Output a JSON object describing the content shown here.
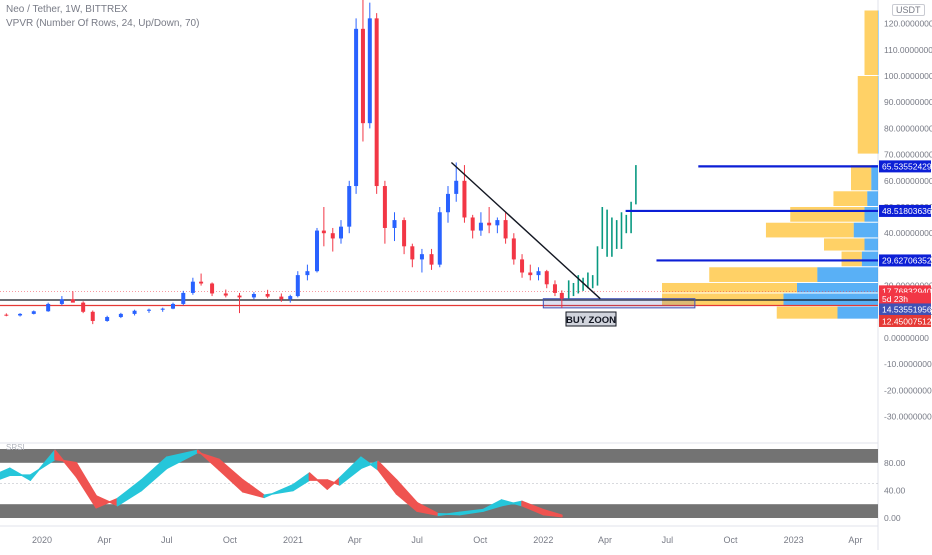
{
  "header": {
    "title": "Neo / Tether, 1W, BITTREX",
    "indicator": "VPVR (Number Of Rows, 24, Up/Down, 70)",
    "currency": "USDT"
  },
  "colors": {
    "up": "#2962ff",
    "down": "#f23645",
    "teal": "#089981",
    "level_line": "#0c1fd6",
    "support_red": "#e53935",
    "support_dark": "#131722",
    "vp_up": "#2196f3",
    "vp_down": "#ffb300",
    "osc_gray": "#737373",
    "osc_cyan": "#26c6da",
    "osc_red": "#ef5350"
  },
  "chart_data": {
    "type": "candlestick",
    "x_ticks": [
      "2020",
      "Apr",
      "Jul",
      "Oct",
      "2021",
      "Apr",
      "Jul",
      "Oct",
      "2022",
      "Apr",
      "Jul",
      "Oct",
      "2023",
      "Apr"
    ],
    "y_ticks": [
      "120.00000000",
      "110.00000000",
      "100.00000000",
      "90.00000000",
      "80.00000000",
      "70.00000000",
      "60.00000000",
      "50.00000000",
      "40.00000000",
      "30.00000000",
      "20.00000000",
      "10.00000000",
      "0.00000000",
      "-10.00000000",
      "-20.00000000",
      "-30.00000000"
    ],
    "price_labels": [
      {
        "text": "65.53552429",
        "y": 65.5,
        "color": "#0c1fd6"
      },
      {
        "text": "48.51803636",
        "y": 48.5,
        "color": "#0c1fd6"
      },
      {
        "text": "29.62706352",
        "y": 29.6,
        "color": "#0c1fd6"
      },
      {
        "text": "17.76832940",
        "y": 17.8,
        "color": "#f23645"
      },
      {
        "text": "5d 23h",
        "y": 15.0,
        "color": "#f23645"
      },
      {
        "text": "14.53551956",
        "y": 10.9,
        "color": "#3f51b5"
      },
      {
        "text": "12.45007512",
        "y": 6.5,
        "color": "#e53935"
      }
    ],
    "horizontal_levels": [
      {
        "y": 65.5,
        "x_start": "2022-08-15"
      },
      {
        "y": 48.5,
        "x_start": "2022-05-01"
      },
      {
        "y": 29.6,
        "x_start": "2022-06-15"
      }
    ],
    "support_lines": [
      {
        "y": 14.5,
        "color": "#131722"
      },
      {
        "y": 12.4,
        "color": "#e53935"
      }
    ],
    "trendline": {
      "from": [
        "2021-08-20",
        67
      ],
      "to": [
        "2022-03-25",
        15
      ]
    },
    "buy_zone": {
      "label": "BUY ZOON",
      "x_start": "2022-01-01",
      "x_end": "2022-08-10",
      "y_low": 11.5,
      "y_high": 15.0
    },
    "projection": [
      {
        "date": "2022-02-07",
        "open": 15,
        "close": 22
      },
      {
        "date": "2022-02-14",
        "open": 21,
        "close": 16
      },
      {
        "date": "2022-02-21",
        "open": 17,
        "close": 24
      },
      {
        "date": "2022-02-28",
        "open": 23,
        "close": 18
      },
      {
        "date": "2022-03-07",
        "open": 19,
        "close": 25
      },
      {
        "date": "2022-03-14",
        "open": 24,
        "close": 19
      },
      {
        "date": "2022-03-21",
        "open": 20,
        "close": 35
      },
      {
        "date": "2022-03-28",
        "open": 34,
        "close": 50
      },
      {
        "date": "2022-04-04",
        "open": 49,
        "close": 31
      },
      {
        "date": "2022-04-11",
        "open": 31,
        "close": 46
      },
      {
        "date": "2022-04-18",
        "open": 45,
        "close": 34
      },
      {
        "date": "2022-04-25",
        "open": 34,
        "close": 48
      },
      {
        "date": "2022-05-02",
        "open": 47,
        "close": 40
      },
      {
        "date": "2022-05-09",
        "open": 40,
        "close": 52
      },
      {
        "date": "2022-05-16",
        "open": 51,
        "close": 66
      }
    ],
    "candles": [
      {
        "date": "2019-10-01",
        "o": 9.6,
        "h": 10.2,
        "l": 9.0,
        "c": 9.2
      },
      {
        "date": "2019-10-21",
        "o": 9.2,
        "h": 9.6,
        "l": 8.6,
        "c": 8.9
      },
      {
        "date": "2019-11-10",
        "o": 8.9,
        "h": 9.4,
        "l": 8.3,
        "c": 8.6
      },
      {
        "date": "2019-11-30",
        "o": 8.6,
        "h": 9.5,
        "l": 8.2,
        "c": 9.2
      },
      {
        "date": "2019-12-20",
        "o": 9.2,
        "h": 10.5,
        "l": 9.0,
        "c": 10.2
      },
      {
        "date": "2020-01-10",
        "o": 10.2,
        "h": 13.5,
        "l": 10.0,
        "c": 13.0
      },
      {
        "date": "2020-01-30",
        "o": 13.0,
        "h": 16.0,
        "l": 12.5,
        "c": 14.8
      },
      {
        "date": "2020-02-15",
        "o": 14.8,
        "h": 17.8,
        "l": 13.8,
        "c": 13.5
      },
      {
        "date": "2020-03-01",
        "o": 13.5,
        "h": 14.0,
        "l": 9.5,
        "c": 10.0
      },
      {
        "date": "2020-03-15",
        "o": 10.0,
        "h": 10.5,
        "l": 5.3,
        "c": 6.5
      },
      {
        "date": "2020-04-05",
        "o": 6.5,
        "h": 8.5,
        "l": 6.2,
        "c": 8.0
      },
      {
        "date": "2020-04-25",
        "o": 8.0,
        "h": 9.6,
        "l": 7.6,
        "c": 9.2
      },
      {
        "date": "2020-05-15",
        "o": 9.2,
        "h": 10.8,
        "l": 8.6,
        "c": 10.4
      },
      {
        "date": "2020-06-05",
        "o": 10.4,
        "h": 11.2,
        "l": 9.6,
        "c": 10.8
      },
      {
        "date": "2020-06-25",
        "o": 10.8,
        "h": 11.6,
        "l": 10.0,
        "c": 11.2
      },
      {
        "date": "2020-07-10",
        "o": 11.2,
        "h": 13.5,
        "l": 11.0,
        "c": 13.0
      },
      {
        "date": "2020-07-25",
        "o": 13.0,
        "h": 18.0,
        "l": 12.5,
        "c": 17.2
      },
      {
        "date": "2020-08-08",
        "o": 17.2,
        "h": 23.0,
        "l": 16.5,
        "c": 21.5
      },
      {
        "date": "2020-08-20",
        "o": 21.5,
        "h": 24.6,
        "l": 20.0,
        "c": 20.8
      },
      {
        "date": "2020-09-05",
        "o": 20.8,
        "h": 21.2,
        "l": 16.0,
        "c": 17.0
      },
      {
        "date": "2020-09-25",
        "o": 17.0,
        "h": 18.5,
        "l": 15.5,
        "c": 16.2
      },
      {
        "date": "2020-10-15",
        "o": 16.2,
        "h": 17.2,
        "l": 9.5,
        "c": 15.5
      },
      {
        "date": "2020-11-05",
        "o": 15.5,
        "h": 17.5,
        "l": 14.8,
        "c": 16.8
      },
      {
        "date": "2020-11-25",
        "o": 16.8,
        "h": 18.4,
        "l": 15.2,
        "c": 15.8
      },
      {
        "date": "2020-12-15",
        "o": 15.8,
        "h": 17.0,
        "l": 13.8,
        "c": 14.8
      },
      {
        "date": "2020-12-28",
        "o": 14.8,
        "h": 16.5,
        "l": 13.5,
        "c": 16.0
      },
      {
        "date": "2021-01-08",
        "o": 16.0,
        "h": 25.5,
        "l": 15.5,
        "c": 24.0
      },
      {
        "date": "2021-01-22",
        "o": 24.0,
        "h": 28.0,
        "l": 22.0,
        "c": 25.5
      },
      {
        "date": "2021-02-05",
        "o": 25.5,
        "h": 42.0,
        "l": 25.0,
        "c": 41.0
      },
      {
        "date": "2021-02-15",
        "o": 41.0,
        "h": 50.0,
        "l": 35.0,
        "c": 40.0
      },
      {
        "date": "2021-02-28",
        "o": 40.0,
        "h": 42.0,
        "l": 33.0,
        "c": 38.0
      },
      {
        "date": "2021-03-12",
        "o": 38.0,
        "h": 45.0,
        "l": 36.0,
        "c": 42.5
      },
      {
        "date": "2021-03-24",
        "o": 42.5,
        "h": 60.0,
        "l": 40.0,
        "c": 58.0
      },
      {
        "date": "2021-04-03",
        "o": 58.0,
        "h": 122.0,
        "l": 55.0,
        "c": 118.0
      },
      {
        "date": "2021-04-13",
        "o": 118.0,
        "h": 135.0,
        "l": 75.0,
        "c": 82.0
      },
      {
        "date": "2021-04-23",
        "o": 82.0,
        "h": 128.0,
        "l": 80.0,
        "c": 122.0
      },
      {
        "date": "2021-05-03",
        "o": 122.0,
        "h": 124.0,
        "l": 55.0,
        "c": 58.0
      },
      {
        "date": "2021-05-15",
        "o": 58.0,
        "h": 60.0,
        "l": 36.0,
        "c": 42.0
      },
      {
        "date": "2021-05-29",
        "o": 42.0,
        "h": 48.0,
        "l": 37.0,
        "c": 45.0
      },
      {
        "date": "2021-06-12",
        "o": 45.0,
        "h": 46.0,
        "l": 32.0,
        "c": 35.0
      },
      {
        "date": "2021-06-24",
        "o": 35.0,
        "h": 36.0,
        "l": 27.0,
        "c": 30.0
      },
      {
        "date": "2021-07-08",
        "o": 30.0,
        "h": 34.0,
        "l": 25.0,
        "c": 32.0
      },
      {
        "date": "2021-07-22",
        "o": 32.0,
        "h": 34.0,
        "l": 26.0,
        "c": 28.0
      },
      {
        "date": "2021-08-03",
        "o": 28.0,
        "h": 50.0,
        "l": 27.0,
        "c": 48.0
      },
      {
        "date": "2021-08-15",
        "o": 48.0,
        "h": 58.0,
        "l": 44.0,
        "c": 55.0
      },
      {
        "date": "2021-08-27",
        "o": 55.0,
        "h": 67.0,
        "l": 52.0,
        "c": 60.0
      },
      {
        "date": "2021-09-08",
        "o": 60.0,
        "h": 66.0,
        "l": 44.0,
        "c": 46.0
      },
      {
        "date": "2021-09-20",
        "o": 46.0,
        "h": 47.0,
        "l": 38.0,
        "c": 41.0
      },
      {
        "date": "2021-10-02",
        "o": 41.0,
        "h": 48.0,
        "l": 39.0,
        "c": 44.0
      },
      {
        "date": "2021-10-14",
        "o": 44.0,
        "h": 50.0,
        "l": 40.0,
        "c": 43.0
      },
      {
        "date": "2021-10-26",
        "o": 43.0,
        "h": 46.0,
        "l": 40.0,
        "c": 45.0
      },
      {
        "date": "2021-11-07",
        "o": 45.0,
        "h": 48.0,
        "l": 36.0,
        "c": 38.0
      },
      {
        "date": "2021-11-19",
        "o": 38.0,
        "h": 40.0,
        "l": 28.0,
        "c": 30.0
      },
      {
        "date": "2021-12-01",
        "o": 30.0,
        "h": 32.0,
        "l": 23.0,
        "c": 25.0
      },
      {
        "date": "2021-12-13",
        "o": 25.0,
        "h": 28.0,
        "l": 22.0,
        "c": 24.0
      },
      {
        "date": "2021-12-25",
        "o": 24.0,
        "h": 27.0,
        "l": 22.0,
        "c": 25.5
      },
      {
        "date": "2022-01-06",
        "o": 25.5,
        "h": 26.0,
        "l": 19.0,
        "c": 20.5
      },
      {
        "date": "2022-01-18",
        "o": 20.5,
        "h": 22.0,
        "l": 16.0,
        "c": 17.2
      },
      {
        "date": "2022-01-28",
        "o": 17.2,
        "h": 18.2,
        "l": 11.5,
        "c": 15.0
      }
    ],
    "volume_profile": [
      {
        "y_low": 100,
        "y_high": 125,
        "up": 0.0,
        "down": 0.1
      },
      {
        "y_low": 70,
        "y_high": 100,
        "up": 0.0,
        "down": 0.15
      },
      {
        "y_low": 56,
        "y_high": 66,
        "up": 0.05,
        "down": 0.15
      },
      {
        "y_low": 50,
        "y_high": 56,
        "up": 0.08,
        "down": 0.25
      },
      {
        "y_low": 44,
        "y_high": 50,
        "up": 0.1,
        "down": 0.55
      },
      {
        "y_low": 38,
        "y_high": 44,
        "up": 0.18,
        "down": 0.65
      },
      {
        "y_low": 33,
        "y_high": 38,
        "up": 0.1,
        "down": 0.3
      },
      {
        "y_low": 27,
        "y_high": 33,
        "up": 0.12,
        "down": 0.15
      },
      {
        "y_low": 21,
        "y_high": 27,
        "up": 0.45,
        "down": 0.8
      },
      {
        "y_low": 17,
        "y_high": 21,
        "up": 0.6,
        "down": 1.0
      },
      {
        "y_low": 12,
        "y_high": 17,
        "up": 0.7,
        "down": 0.9
      },
      {
        "y_low": 7,
        "y_high": 12,
        "up": 0.3,
        "down": 0.45
      }
    ],
    "oscillator": {
      "label": "SRSI",
      "y_ticks": [
        "80.00",
        "40.00",
        "0.00"
      ],
      "ylim": [
        0,
        100
      ],
      "bands": [
        [
          80,
          100
        ],
        [
          0,
          20
        ]
      ],
      "k": [
        [
          "2019-10-01",
          52
        ],
        [
          "2019-11-15",
          72
        ],
        [
          "2019-12-15",
          55
        ],
        [
          "2020-01-20",
          98
        ],
        [
          "2020-02-20",
          60
        ],
        [
          "2020-03-20",
          15
        ],
        [
          "2020-04-20",
          28
        ],
        [
          "2020-05-25",
          55
        ],
        [
          "2020-07-01",
          88
        ],
        [
          "2020-08-15",
          98
        ],
        [
          "2020-09-15",
          70
        ],
        [
          "2020-10-20",
          38
        ],
        [
          "2020-11-20",
          30
        ],
        [
          "2021-01-01",
          48
        ],
        [
          "2021-01-25",
          65
        ],
        [
          "2021-02-20",
          42
        ],
        [
          "2021-03-10",
          58
        ],
        [
          "2021-04-10",
          88
        ],
        [
          "2021-05-05",
          70
        ],
        [
          "2021-06-01",
          35
        ],
        [
          "2021-07-01",
          10
        ],
        [
          "2021-08-01",
          4
        ],
        [
          "2021-09-01",
          8
        ],
        [
          "2021-10-05",
          12
        ],
        [
          "2021-11-01",
          26
        ],
        [
          "2021-12-01",
          18
        ],
        [
          "2022-01-01",
          5
        ],
        [
          "2022-01-28",
          2
        ]
      ],
      "d": [
        [
          "2019-10-01",
          45
        ],
        [
          "2019-11-15",
          62
        ],
        [
          "2019-12-15",
          62
        ],
        [
          "2020-01-20",
          85
        ],
        [
          "2020-02-20",
          80
        ],
        [
          "2020-03-20",
          32
        ],
        [
          "2020-04-20",
          18
        ],
        [
          "2020-05-25",
          40
        ],
        [
          "2020-07-01",
          72
        ],
        [
          "2020-08-15",
          95
        ],
        [
          "2020-09-15",
          85
        ],
        [
          "2020-10-20",
          55
        ],
        [
          "2020-11-20",
          33
        ],
        [
          "2021-01-01",
          40
        ],
        [
          "2021-01-25",
          55
        ],
        [
          "2021-02-20",
          55
        ],
        [
          "2021-03-10",
          48
        ],
        [
          "2021-04-10",
          72
        ],
        [
          "2021-05-05",
          82
        ],
        [
          "2021-06-01",
          55
        ],
        [
          "2021-07-01",
          22
        ],
        [
          "2021-08-01",
          6
        ],
        [
          "2021-09-01",
          5
        ],
        [
          "2021-10-05",
          10
        ],
        [
          "2021-11-01",
          18
        ],
        [
          "2021-12-01",
          24
        ],
        [
          "2022-01-01",
          12
        ],
        [
          "2022-01-28",
          4
        ]
      ]
    }
  }
}
